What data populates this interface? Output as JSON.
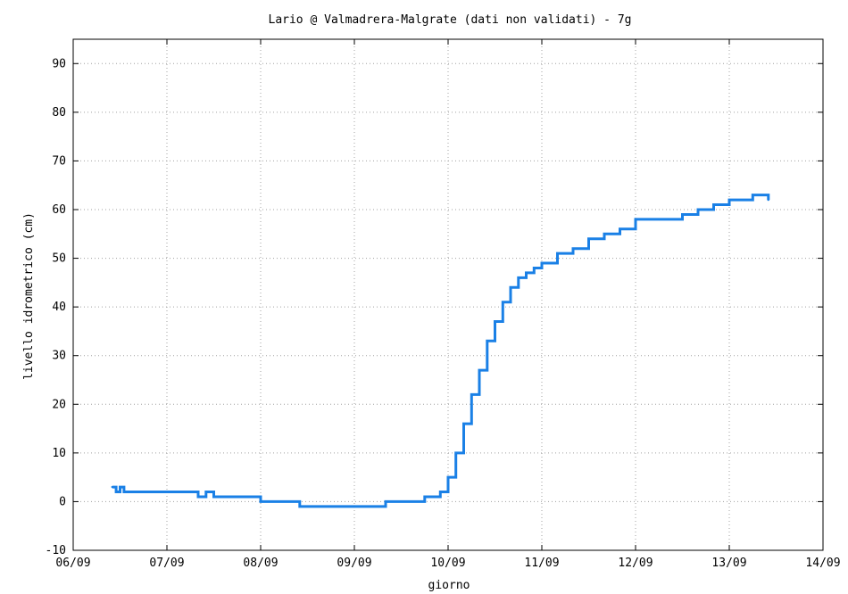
{
  "chart_data": {
    "type": "line",
    "title": "Lario @ Valmadrera-Malgrate (dati non validati) - 7g",
    "xlabel": "giorno",
    "ylabel": "livello idrometrico (cm)",
    "xlim": [
      "06/09",
      "14/09"
    ],
    "ylim": [
      -10,
      95
    ],
    "y_ticks": [
      -10,
      0,
      10,
      20,
      30,
      40,
      50,
      60,
      70,
      80,
      90
    ],
    "x_ticks": [
      "06/09",
      "07/09",
      "08/09",
      "09/09",
      "10/09",
      "11/09",
      "12/09",
      "13/09",
      "14/09"
    ],
    "grid": true,
    "series": [
      {
        "color": "#1a80e6",
        "x": [
          "06/09 10:00",
          "06/09 11:00",
          "06/09 12:00",
          "06/09 13:00",
          "06/09 14:00",
          "07/09 06:00",
          "07/09 08:00",
          "07/09 10:00",
          "07/09 12:00",
          "07/09 14:00",
          "08/09 00:00",
          "08/09 10:00",
          "09/09 00:00",
          "09/09 08:00",
          "09/09 14:00",
          "09/09 18:00",
          "09/09 20:00",
          "09/09 22:00",
          "10/09 00:00",
          "10/09 02:00",
          "10/09 04:00",
          "10/09 06:00",
          "10/09 08:00",
          "10/09 10:00",
          "10/09 12:00",
          "10/09 14:00",
          "10/09 16:00",
          "10/09 18:00",
          "10/09 20:00",
          "10/09 22:00",
          "11/09 00:00",
          "11/09 04:00",
          "11/09 08:00",
          "11/09 12:00",
          "11/09 16:00",
          "11/09 20:00",
          "12/09 00:00",
          "12/09 06:00",
          "12/09 12:00",
          "12/09 16:00",
          "12/09 20:00",
          "13/09 00:00",
          "13/09 06:00",
          "13/09 10:00"
        ],
        "y": [
          3,
          2,
          3,
          2,
          2,
          2,
          1,
          2,
          1,
          1,
          0,
          -1,
          -1,
          0,
          0,
          1,
          1,
          2,
          5,
          10,
          16,
          22,
          27,
          33,
          37,
          41,
          44,
          46,
          47,
          48,
          49,
          51,
          52,
          54,
          55,
          56,
          58,
          58,
          59,
          60,
          61,
          62,
          63,
          62
        ]
      }
    ]
  }
}
